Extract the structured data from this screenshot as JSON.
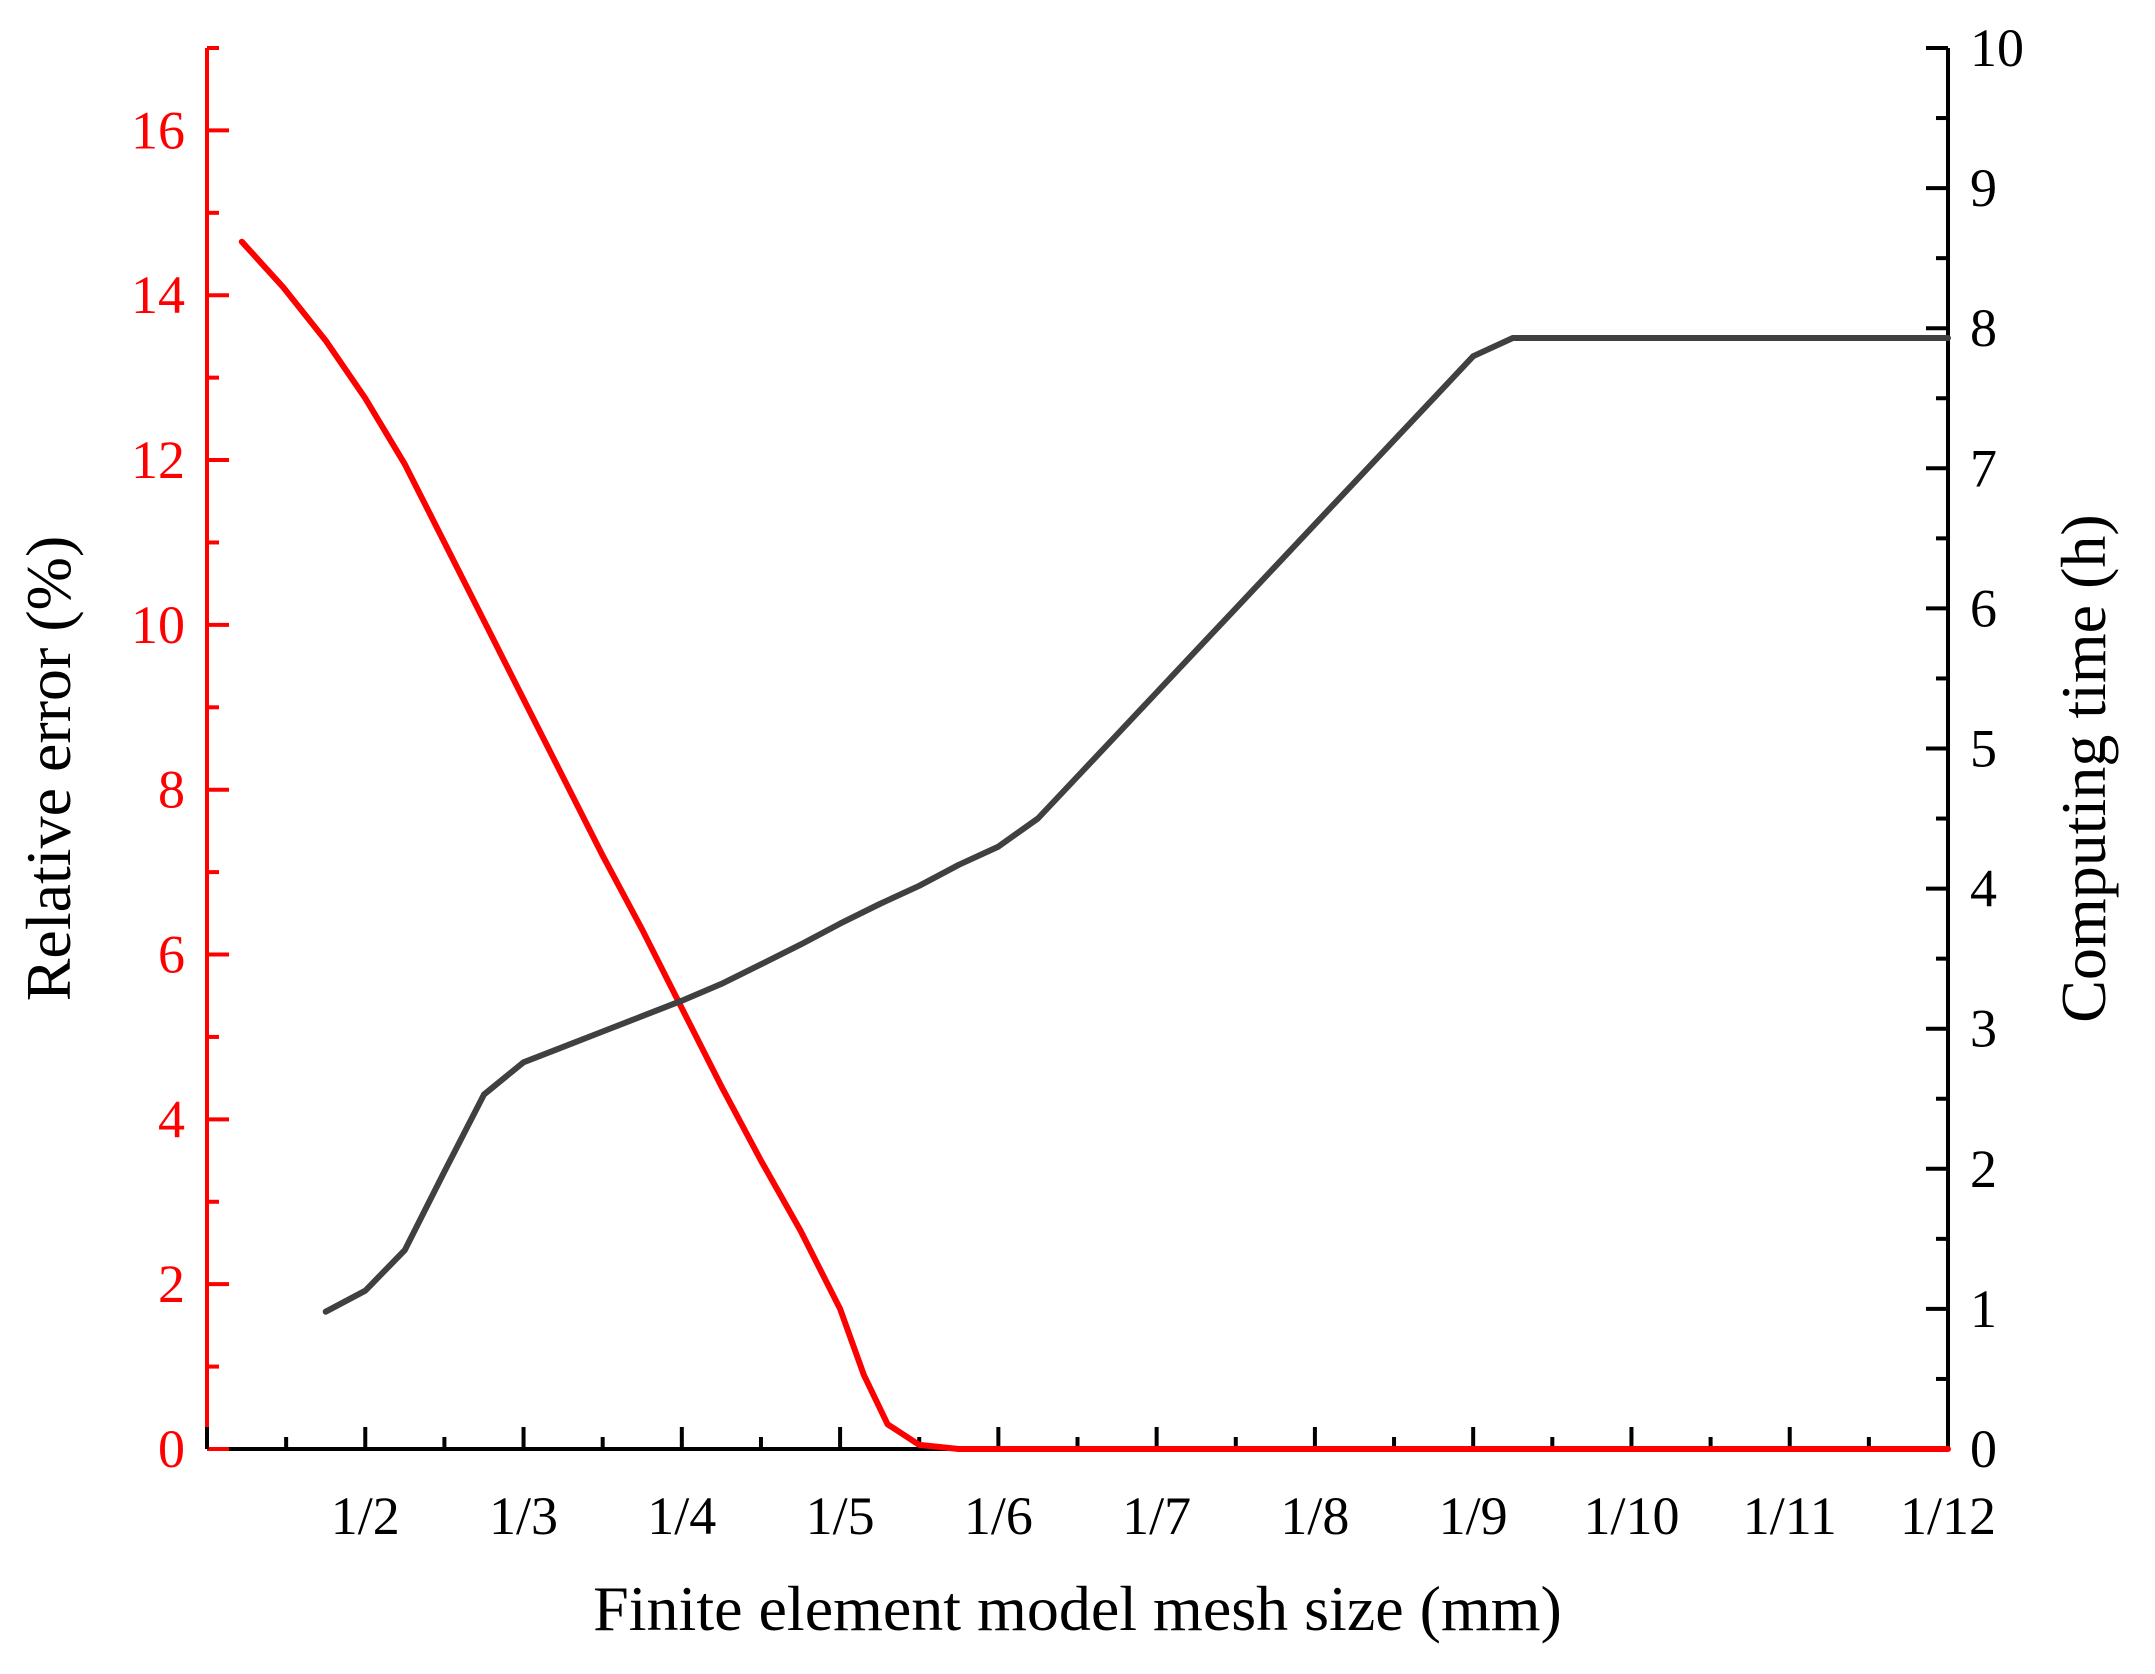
{
  "chart_data": {
    "type": "line",
    "xlabel": "Finite element model mesh size (mm)",
    "x_tick_labels": [
      "1/2",
      "1/3",
      "1/4",
      "1/5",
      "1/6",
      "1/7",
      "1/8",
      "1/9",
      "1/10",
      "1/11",
      "1/12"
    ],
    "x_tick_positions": [
      1,
      2,
      3,
      4,
      5,
      6,
      7,
      8,
      9,
      10,
      11
    ],
    "xlim": [
      0,
      11
    ],
    "left_axis": {
      "label": "Relative error (%)",
      "ylim": [
        0,
        17
      ],
      "ticks": [
        0,
        2,
        4,
        6,
        8,
        10,
        12,
        14,
        16
      ],
      "minor_step": 1,
      "color": "#ff0000"
    },
    "right_axis": {
      "label": "Computing time (h)",
      "ylim": [
        0,
        10
      ],
      "ticks": [
        0,
        1,
        2,
        3,
        4,
        5,
        6,
        7,
        8,
        9,
        10
      ],
      "minor_step": 0.5,
      "color": "#000000"
    },
    "series": [
      {
        "name": "Relative error",
        "axis": "left",
        "color": "#ff0000",
        "x": [
          0.22,
          0.48,
          0.75,
          1.0,
          1.25,
          1.5,
          1.75,
          2.0,
          2.25,
          2.5,
          2.75,
          3.0,
          3.25,
          3.5,
          3.75,
          4.0,
          4.15,
          4.3,
          4.5,
          4.75,
          5.0,
          5.25,
          5.5,
          5.75,
          6.0,
          6.25,
          6.5,
          6.75,
          7.0,
          7.25,
          7.5,
          7.75,
          8.0,
          8.25,
          8.5,
          8.75,
          9.0,
          9.5,
          10.0,
          10.5,
          11.0
        ],
        "y": [
          14.65,
          14.1,
          13.45,
          12.75,
          11.95,
          11.0,
          10.05,
          9.1,
          8.15,
          7.2,
          6.3,
          5.35,
          4.4,
          3.5,
          2.65,
          1.7,
          0.9,
          0.3,
          0.05,
          0.0,
          0.0,
          0.0,
          0.0,
          0.0,
          0.0,
          0.0,
          0.0,
          0.0,
          0.0,
          0.0,
          0.0,
          0.0,
          0.0,
          0.0,
          0.0,
          0.0,
          0.0,
          0.0,
          0.0,
          0.0,
          0.0
        ]
      },
      {
        "name": "Computing time",
        "axis": "right",
        "color": "#404040",
        "x": [
          0.75,
          1.0,
          1.25,
          1.5,
          1.75,
          2.0,
          2.25,
          2.5,
          2.75,
          3.0,
          3.25,
          3.5,
          3.75,
          4.0,
          4.25,
          4.5,
          4.75,
          5.0,
          5.25,
          5.5,
          5.75,
          6.0,
          6.25,
          6.5,
          6.75,
          7.0,
          7.25,
          7.5,
          7.75,
          8.0,
          8.25,
          8.5,
          8.75,
          9.0,
          9.25,
          9.5,
          9.75,
          10.0,
          10.25,
          10.5,
          10.75,
          11.0
        ],
        "y": [
          0.98,
          1.13,
          1.42,
          1.98,
          2.53,
          2.76,
          2.87,
          2.98,
          3.09,
          3.2,
          3.32,
          3.46,
          3.6,
          3.75,
          3.89,
          4.02,
          4.17,
          4.3,
          4.5,
          4.8,
          5.1,
          5.4,
          5.7,
          6.0,
          6.3,
          6.6,
          6.9,
          7.2,
          7.5,
          7.8,
          7.93,
          7.93,
          7.93,
          7.93,
          7.93,
          7.93,
          7.93,
          7.93,
          7.93,
          7.93,
          7.93,
          7.93
        ]
      }
    ]
  }
}
